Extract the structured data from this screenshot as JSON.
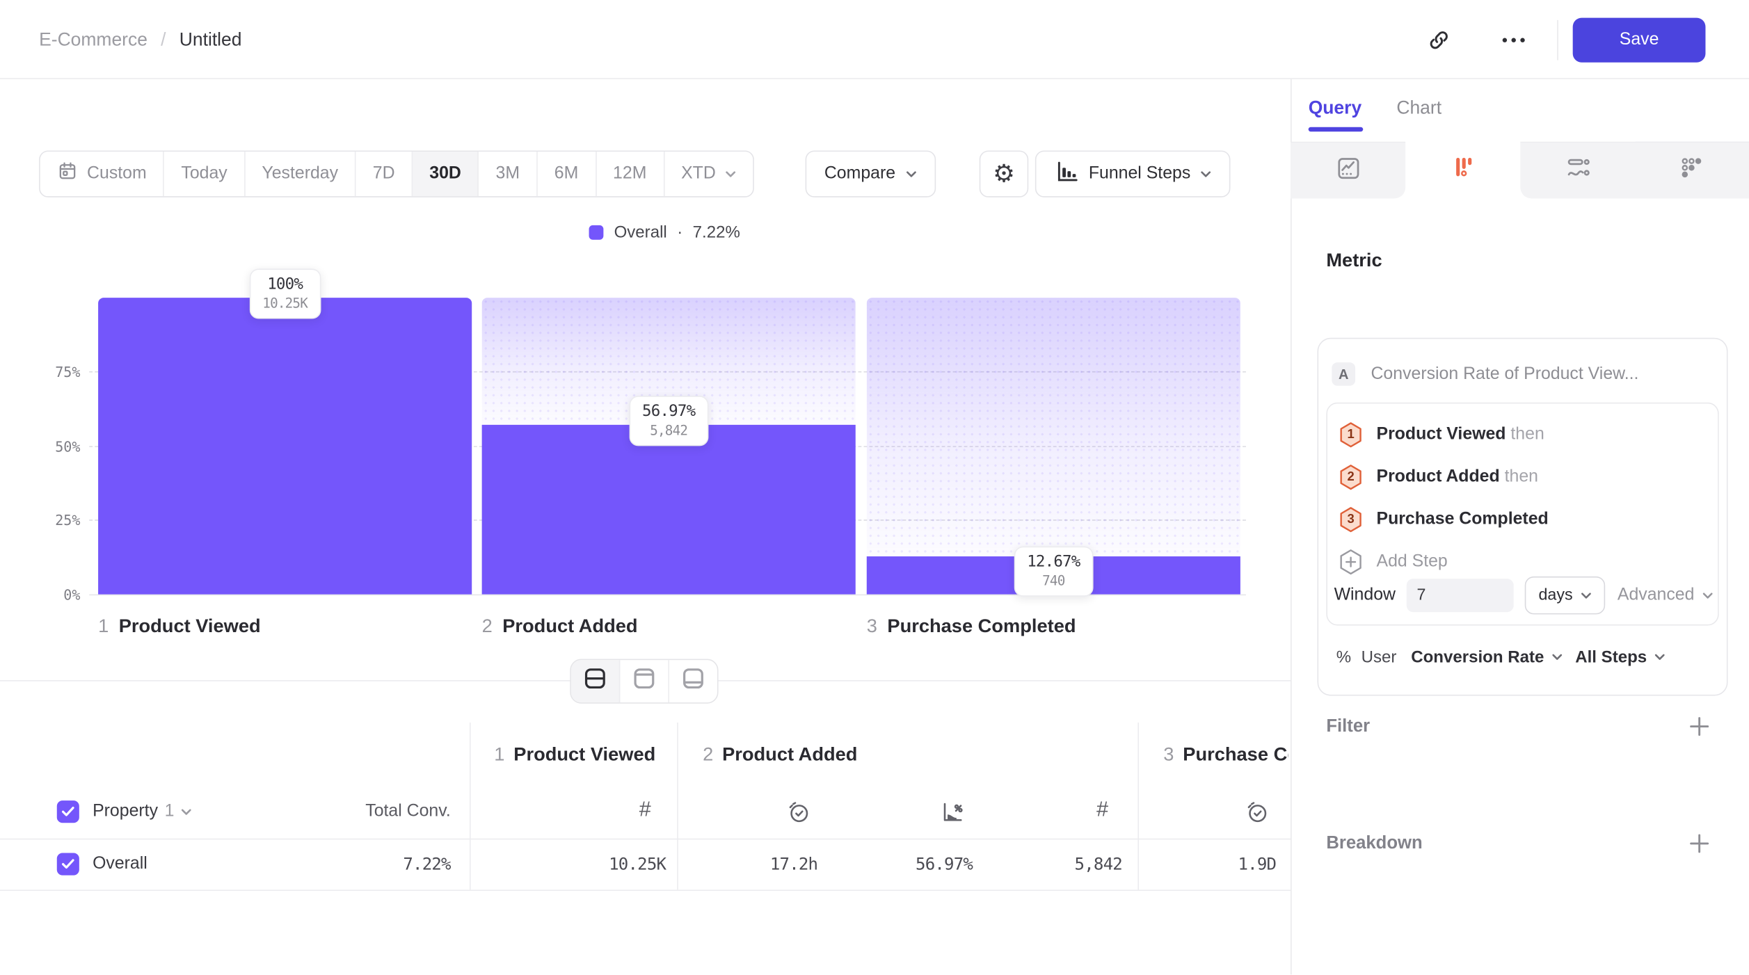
{
  "header": {
    "breadcrumb_parent": "E-Commerce",
    "breadcrumb_separator": "/",
    "title": "Untitled",
    "save_label": "Save"
  },
  "toolbar": {
    "date_ranges": [
      "Custom",
      "Today",
      "Yesterday",
      "7D",
      "30D",
      "3M",
      "6M",
      "12M",
      "XTD"
    ],
    "selected_range": "30D",
    "compare_label": "Compare",
    "chart_type_label": "Funnel Steps"
  },
  "legend": {
    "label": "Overall",
    "separator": "·",
    "value": "7.22%"
  },
  "chart_data": {
    "type": "bar",
    "title": "",
    "categories": [
      "Product Viewed",
      "Product Added",
      "Purchase Completed"
    ],
    "step_numbers": [
      "1",
      "2",
      "3"
    ],
    "series": [
      {
        "name": "Overall",
        "values_pct": [
          100,
          56.97,
          12.67
        ],
        "counts": [
          "10.25K",
          "5,842",
          "740"
        ]
      }
    ],
    "tooltips": [
      {
        "pct": "100%",
        "count": "10.25K"
      },
      {
        "pct": "56.97%",
        "count": "5,842"
      },
      {
        "pct": "12.67%",
        "count": "740"
      }
    ],
    "y_ticks": [
      "75%",
      "50%",
      "25%",
      "0%"
    ],
    "ylim": [
      0,
      100
    ],
    "grid": "dashed-horizontal",
    "legend_position": "top",
    "bar_color": "#7456FB"
  },
  "table": {
    "property_label": "Property",
    "property_index": "1",
    "total_conv_header": "Total Conv.",
    "count_glyph": "#",
    "step_headers": [
      {
        "num": "1",
        "name": "Product Viewed"
      },
      {
        "num": "2",
        "name": "Product Added"
      },
      {
        "num": "3",
        "name": "Purchase Completed"
      }
    ],
    "rows": [
      {
        "label": "Overall",
        "checked": true,
        "total_conv": "7.22%",
        "values": [
          "10.25K",
          "17.2h",
          "56.97%",
          "5,842",
          "1.9D"
        ]
      }
    ]
  },
  "panel": {
    "tabs": {
      "query": "Query",
      "chart": "Chart"
    },
    "metric": {
      "heading": "Metric",
      "series_letter": "A",
      "series_name": "Conversion Rate of Product View...",
      "steps": [
        {
          "num": "1",
          "name": "Product Viewed",
          "suffix": "then"
        },
        {
          "num": "2",
          "name": "Product Added",
          "suffix": "then"
        },
        {
          "num": "3",
          "name": "Purchase Completed",
          "suffix": ""
        }
      ],
      "add_step": "Add Step",
      "window_label": "Window",
      "window_value": "7",
      "window_unit": "days",
      "advanced_label": "Advanced",
      "measure_prefix": "%",
      "measure_entity": "User",
      "measure_type": "Conversion Rate",
      "measure_scope": "All Steps"
    },
    "filter": {
      "label": "Filter"
    },
    "breakdown": {
      "label": "Breakdown"
    }
  },
  "colors": {
    "accent_purple": "#7456FB",
    "save_indigo": "#4B44DE",
    "query_tab_indigo": "#4F43E0",
    "funnel_icon_coral": "#EE6A4B",
    "hex_badge_fill": "#FBDCCD",
    "hex_badge_stroke": "#E06038"
  }
}
